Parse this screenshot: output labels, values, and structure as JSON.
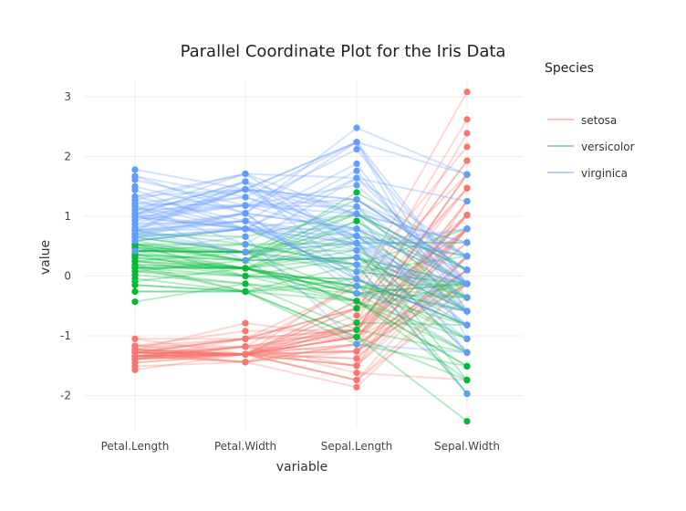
{
  "chart_data": {
    "type": "parallel-coordinates (line + scatter)",
    "title": "Parallel Coordinate Plot for the Iris Data",
    "xlabel": "variable",
    "ylabel": "value",
    "categories": [
      "Petal.Length",
      "Petal.Width",
      "Sepal.Length",
      "Sepal.Width"
    ],
    "yticks": [
      -2,
      -1,
      0,
      1,
      2,
      3
    ],
    "ylim": [
      -2.6,
      3.3
    ],
    "grid": true,
    "legend": {
      "title": "Species",
      "position": "top-right",
      "entries": [
        "setosa",
        "versicolor",
        "virginica"
      ]
    },
    "colors": {
      "setosa": "#F8766D",
      "versicolor": "#00BA38",
      "virginica": "#619CFF"
    },
    "series": [
      {
        "name": "setosa",
        "profiles": [
          [
            -1.34,
            -1.31,
            -0.9,
            1.02
          ],
          [
            -1.34,
            -1.31,
            -1.14,
            -0.13
          ],
          [
            -1.39,
            -1.31,
            -1.38,
            0.33
          ],
          [
            -1.28,
            -1.31,
            -1.5,
            0.1
          ],
          [
            -1.34,
            -1.31,
            -1.02,
            1.25
          ],
          [
            -1.17,
            -1.05,
            -0.54,
            1.93
          ],
          [
            -1.34,
            -1.18,
            -1.5,
            0.79
          ],
          [
            -1.28,
            -1.31,
            -1.02,
            0.79
          ],
          [
            -1.34,
            -1.31,
            -1.74,
            -0.36
          ],
          [
            -1.28,
            -1.44,
            -1.14,
            0.1
          ],
          [
            -1.28,
            -1.31,
            -0.54,
            1.47
          ],
          [
            -1.23,
            -1.31,
            -1.26,
            0.79
          ],
          [
            -1.34,
            -1.44,
            -1.26,
            -0.13
          ],
          [
            -1.51,
            -1.44,
            -1.86,
            -0.13
          ],
          [
            -1.45,
            -1.31,
            -0.05,
            2.16
          ],
          [
            -1.28,
            -1.05,
            -0.17,
            3.08
          ],
          [
            -1.39,
            -1.05,
            -0.54,
            1.93
          ],
          [
            -1.34,
            -1.18,
            -0.9,
            1.02
          ],
          [
            -1.17,
            -1.18,
            -0.17,
            1.7
          ],
          [
            -1.28,
            -1.18,
            -0.9,
            1.7
          ],
          [
            -1.17,
            -1.31,
            -0.54,
            0.79
          ],
          [
            -1.28,
            -1.05,
            -0.9,
            1.47
          ],
          [
            -1.57,
            -1.31,
            -1.5,
            1.25
          ],
          [
            -1.17,
            -0.92,
            -0.9,
            0.56
          ],
          [
            -1.05,
            -1.31,
            -1.26,
            0.79
          ],
          [
            -1.23,
            -1.31,
            -1.02,
            -0.13
          ],
          [
            -1.23,
            -1.05,
            -1.02,
            0.79
          ],
          [
            -1.28,
            -1.31,
            -0.78,
            1.02
          ],
          [
            -1.34,
            -1.31,
            -0.78,
            0.79
          ],
          [
            -1.23,
            -1.31,
            -1.38,
            0.33
          ],
          [
            -1.23,
            -1.31,
            -1.26,
            0.1
          ],
          [
            -1.28,
            -1.05,
            -0.54,
            0.79
          ],
          [
            -1.28,
            -1.44,
            -0.78,
            2.39
          ],
          [
            -1.34,
            -1.31,
            -0.42,
            2.62
          ],
          [
            -1.28,
            -1.31,
            -1.14,
            0.1
          ],
          [
            -1.45,
            -1.31,
            -1.02,
            0.33
          ],
          [
            -1.39,
            -1.31,
            -0.42,
            1.02
          ],
          [
            -1.34,
            -1.44,
            -1.14,
            1.25
          ],
          [
            -1.39,
            -1.31,
            -1.74,
            -0.13
          ],
          [
            -1.28,
            -1.31,
            -0.9,
            0.79
          ],
          [
            -1.39,
            -1.18,
            -1.02,
            1.02
          ],
          [
            -1.39,
            -1.18,
            -1.62,
            -1.74
          ],
          [
            -1.39,
            -1.31,
            -1.74,
            0.33
          ],
          [
            -1.23,
            -0.79,
            -1.02,
            1.02
          ],
          [
            -1.05,
            -1.05,
            -0.9,
            1.7
          ],
          [
            -1.34,
            -1.18,
            -1.26,
            -0.13
          ],
          [
            -1.23,
            -1.31,
            -0.9,
            1.7
          ],
          [
            -1.34,
            -1.31,
            -1.5,
            0.33
          ],
          [
            -1.28,
            -1.31,
            -0.66,
            1.47
          ],
          [
            -1.34,
            -1.31,
            -1.02,
            0.56
          ]
        ]
      },
      {
        "name": "versicolor",
        "profiles": [
          [
            0.53,
            0.26,
            1.4,
            0.33
          ],
          [
            0.42,
            0.4,
            0.67,
            0.33
          ],
          [
            0.65,
            0.4,
            1.28,
            0.1
          ],
          [
            0.14,
            0.13,
            -0.42,
            -1.74
          ],
          [
            0.48,
            0.4,
            0.79,
            -0.59
          ],
          [
            0.42,
            0.13,
            -0.17,
            -0.59
          ],
          [
            0.53,
            0.53,
            0.55,
            0.56
          ],
          [
            -0.26,
            -0.26,
            -1.14,
            -1.51
          ],
          [
            0.48,
            0.13,
            0.92,
            -0.36
          ],
          [
            0.08,
            0.26,
            -0.78,
            -0.82
          ],
          [
            -0.15,
            -0.26,
            -1.02,
            -2.43
          ],
          [
            0.25,
            0.4,
            0.07,
            -0.13
          ],
          [
            0.14,
            -0.26,
            0.19,
            -1.97
          ],
          [
            0.53,
            0.26,
            0.31,
            -0.36
          ],
          [
            -0.09,
            0.13,
            -0.29,
            -0.36
          ],
          [
            0.36,
            0.26,
            1.04,
            0.1
          ],
          [
            0.42,
            0.4,
            -0.29,
            -0.13
          ],
          [
            0.19,
            -0.26,
            -0.05,
            -0.82
          ],
          [
            0.42,
            0.4,
            0.43,
            -1.97
          ],
          [
            0.08,
            -0.13,
            -0.29,
            -1.28
          ],
          [
            0.59,
            0.79,
            0.07,
            0.33
          ],
          [
            0.14,
            0.13,
            0.31,
            -0.59
          ],
          [
            0.65,
            0.4,
            0.55,
            -1.28
          ],
          [
            0.53,
            0.0,
            0.31,
            -0.59
          ],
          [
            0.31,
            0.13,
            0.67,
            -0.36
          ],
          [
            0.36,
            0.26,
            0.92,
            -0.13
          ],
          [
            0.59,
            0.26,
            1.16,
            -0.59
          ],
          [
            0.7,
            0.66,
            1.04,
            -0.13
          ],
          [
            0.42,
            0.4,
            0.19,
            -0.36
          ],
          [
            -0.15,
            -0.26,
            -0.17,
            -1.05
          ],
          [
            0.02,
            -0.13,
            -0.42,
            -1.51
          ],
          [
            -0.04,
            -0.26,
            -0.42,
            -1.51
          ],
          [
            0.08,
            0.0,
            -0.05,
            -0.82
          ],
          [
            0.76,
            0.53,
            0.19,
            -0.82
          ],
          [
            0.42,
            0.4,
            -0.54,
            -0.13
          ],
          [
            0.42,
            0.53,
            0.19,
            0.79
          ],
          [
            0.53,
            0.4,
            1.04,
            0.1
          ],
          [
            0.36,
            0.13,
            0.55,
            -1.74
          ],
          [
            0.19,
            0.13,
            -0.29,
            -0.13
          ],
          [
            0.14,
            0.13,
            -0.42,
            -1.28
          ],
          [
            0.36,
            0.0,
            -0.42,
            -1.05
          ],
          [
            0.48,
            0.26,
            0.31,
            -0.13
          ],
          [
            0.14,
            0.0,
            -0.05,
            -1.05
          ],
          [
            -0.26,
            -0.26,
            -1.02,
            -1.74
          ],
          [
            0.25,
            0.13,
            -0.29,
            -0.82
          ],
          [
            0.25,
            0.0,
            -0.17,
            -0.13
          ],
          [
            0.25,
            0.13,
            -0.17,
            -0.36
          ],
          [
            0.31,
            0.13,
            0.43,
            -0.36
          ],
          [
            -0.43,
            -0.13,
            -0.9,
            -1.28
          ],
          [
            0.19,
            0.13,
            -0.17,
            -0.59
          ]
        ]
      },
      {
        "name": "virginica",
        "profiles": [
          [
            1.27,
            1.71,
            0.55,
            0.56
          ],
          [
            0.76,
            0.92,
            -0.05,
            -0.82
          ],
          [
            1.21,
            1.18,
            1.52,
            -0.13
          ],
          [
            1.04,
            0.79,
            0.55,
            -0.36
          ],
          [
            1.16,
            1.32,
            0.79,
            -0.13
          ],
          [
            1.61,
            1.18,
            2.12,
            -0.13
          ],
          [
            0.42,
            0.66,
            -1.14,
            -1.28
          ],
          [
            1.44,
            0.79,
            1.76,
            -0.36
          ],
          [
            1.16,
            0.79,
            1.04,
            -1.28
          ],
          [
            1.33,
            1.71,
            1.64,
            1.25
          ],
          [
            0.76,
            1.05,
            0.79,
            0.33
          ],
          [
            0.87,
            0.92,
            0.67,
            -0.82
          ],
          [
            0.99,
            1.18,
            1.16,
            -0.13
          ],
          [
            0.7,
            1.05,
            -0.17,
            -1.28
          ],
          [
            0.76,
            1.58,
            -0.05,
            -0.59
          ],
          [
            0.87,
            1.45,
            0.67,
            0.33
          ],
          [
            0.99,
            0.79,
            0.79,
            -0.13
          ],
          [
            1.67,
            1.32,
            2.24,
            1.7
          ],
          [
            1.78,
            1.45,
            2.24,
            -1.05
          ],
          [
            0.7,
            0.4,
            0.19,
            -1.97
          ],
          [
            1.1,
            1.45,
            1.28,
            0.33
          ],
          [
            0.65,
            1.05,
            -0.29,
            -0.59
          ],
          [
            1.67,
            1.05,
            2.24,
            -0.59
          ],
          [
            0.65,
            0.79,
            0.55,
            -0.82
          ],
          [
            1.1,
            1.18,
            1.04,
            0.56
          ],
          [
            1.27,
            0.79,
            1.64,
            0.33
          ],
          [
            0.59,
            0.79,
            0.43,
            -0.59
          ],
          [
            0.65,
            0.79,
            0.31,
            -0.13
          ],
          [
            1.04,
            1.18,
            0.67,
            -0.59
          ],
          [
            1.16,
            0.53,
            1.64,
            -0.13
          ],
          [
            1.33,
            0.92,
            1.88,
            -0.59
          ],
          [
            1.5,
            1.05,
            2.48,
            1.7
          ],
          [
            1.04,
            1.32,
            0.67,
            -0.59
          ],
          [
            0.76,
            0.4,
            0.55,
            -0.59
          ],
          [
            1.04,
            0.26,
            0.31,
            -1.05
          ],
          [
            1.33,
            1.45,
            2.24,
            -0.13
          ],
          [
            1.04,
            1.58,
            0.55,
            0.79
          ],
          [
            0.99,
            0.79,
            0.67,
            0.1
          ],
          [
            0.59,
            0.79,
            0.19,
            -0.13
          ],
          [
            0.93,
            1.18,
            1.28,
            0.1
          ],
          [
            1.04,
            1.58,
            1.04,
            0.1
          ],
          [
            0.76,
            1.45,
            1.28,
            0.1
          ],
          [
            0.76,
            0.92,
            -0.05,
            -0.82
          ],
          [
            1.21,
            1.45,
            1.16,
            0.33
          ],
          [
            1.1,
            1.71,
            1.04,
            0.56
          ],
          [
            0.81,
            1.45,
            1.04,
            -0.13
          ],
          [
            0.7,
            0.92,
            0.55,
            -1.28
          ],
          [
            0.81,
            1.05,
            0.79,
            -0.13
          ],
          [
            0.93,
            1.45,
            0.43,
            0.79
          ],
          [
            0.76,
            0.79,
            0.07,
            -0.13
          ]
        ]
      }
    ]
  }
}
